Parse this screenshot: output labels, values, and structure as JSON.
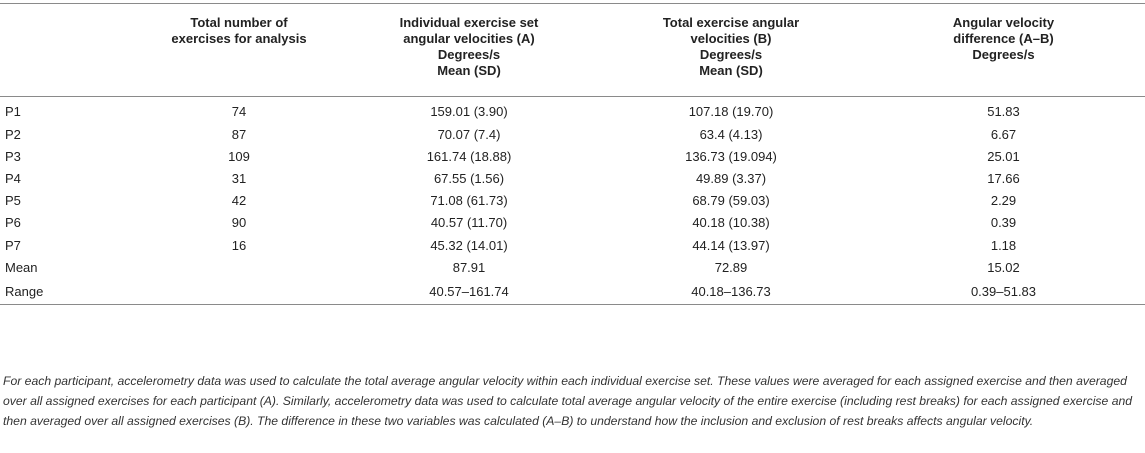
{
  "table": {
    "headers": [
      [],
      [
        "Total number of",
        "exercises for analysis"
      ],
      [
        "Individual exercise set",
        "angular velocities (A)",
        "Degrees/s",
        "Mean (SD)"
      ],
      [
        "Total exercise angular",
        "velocities (B)",
        "Degrees/s",
        "Mean (SD)"
      ],
      [
        "Angular velocity",
        "difference (A–B)",
        "Degrees/s"
      ]
    ],
    "rows": [
      [
        "P1",
        "74",
        "159.01 (3.90)",
        "107.18 (19.70)",
        "51.83"
      ],
      [
        "P2",
        "87",
        "70.07 (7.4)",
        "63.4 (4.13)",
        "6.67"
      ],
      [
        "P3",
        "109",
        "161.74 (18.88)",
        "136.73 (19.094)",
        "25.01"
      ],
      [
        "P4",
        "31",
        "67.55 (1.56)",
        "49.89 (3.37)",
        "17.66"
      ],
      [
        "P5",
        "42",
        "71.08 (61.73)",
        "68.79 (59.03)",
        "2.29"
      ],
      [
        "P6",
        "90",
        "40.57 (11.70)",
        "40.18 (10.38)",
        "0.39"
      ],
      [
        "P7",
        "16",
        "45.32 (14.01)",
        "44.14 (13.97)",
        "1.18"
      ],
      [
        "Mean",
        "",
        "87.91",
        "72.89",
        "15.02"
      ],
      [
        "Range",
        "",
        "40.57–161.74",
        "40.18–136.73",
        "0.39–51.83"
      ]
    ]
  },
  "footnote": "For each participant, accelerometry data was used to calculate the total average angular velocity within each individual exercise set. These values were averaged for each assigned exercise and then averaged over all assigned exercises for each participant (A). Similarly, accelerometry data was used to calculate total average angular velocity of the entire exercise (including rest breaks) for each assigned exercise and then averaged over all assigned exercises (B). The difference in these two variables was calculated (A–B) to understand how the inclusion and exclusion of rest breaks affects angular velocity."
}
